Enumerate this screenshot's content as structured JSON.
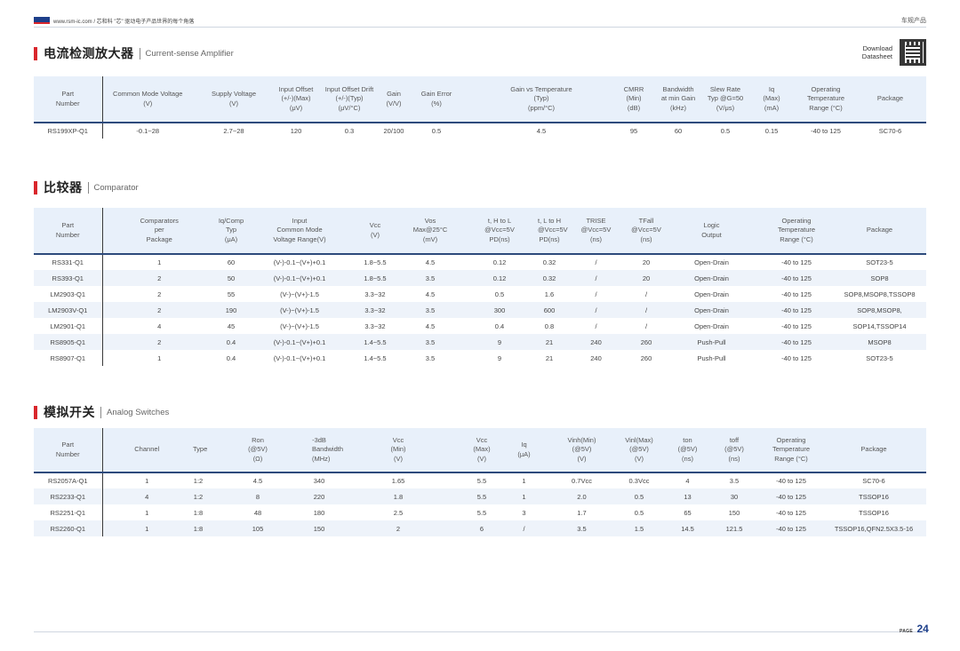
{
  "header": {
    "site": "www.rsm-ic.com / 芯和科 \"芯\" 驱动电子产品世界的每个角落",
    "section_tag": "车规产品"
  },
  "download": {
    "line1": "Download",
    "line2": "Datasheet"
  },
  "amp": {
    "title_cn": "电流检测放大器",
    "title_en": "Current-sense Amplifier",
    "headers": [
      "Part\nNumber",
      "Common Mode Voltage\n(V)",
      "Supply Voltage\n(V)",
      "Input Offset\n(+/-)(Max)\n(μV)",
      "Input Offset Drift\n(+/-)(Typ)\n(μV/°C)",
      "Gain\n(V/V)",
      "Gain Error\n(%)",
      "Gain vs Temperature\n(Typ)\n(ppm/°C)",
      "CMRR\n(Min)\n(dB)",
      "Bandwidth\nat min Gain\n(kHz)",
      "Slew Rate\nTyp @G=50\n(V/μs)",
      "Iq\n(Max)\n(mA)",
      "Operating\nTemperature\nRange (°C)",
      "Package"
    ],
    "rows": [
      [
        "RS199XP-Q1",
        "-0.1~28",
        "2.7~28",
        "120",
        "0.3",
        "20/100",
        "0.5",
        "4.5",
        "95",
        "60",
        "0.5",
        "0.15",
        "-40 to 125",
        "SC70-6"
      ]
    ]
  },
  "comp": {
    "title_cn": "比较器",
    "title_en": "Comparator",
    "headers": [
      "Part\nNumber",
      "Comparators\nper\nPackage",
      "Iq/Comp\nTyp\n(μA)",
      "Input\nCommon Mode\nVoltage Range(V)",
      "Vcc\n(V)",
      "Vos\nMax@25°C\n(mV)",
      "t, H to L\n@Vcc=5V\nPD(ns)",
      "t, L to H\n@Vcc=5V\nPD(ns)",
      "TRISE\n@Vcc=5V\n(ns)",
      "TFall\n@Vcc=5V\n(ns)",
      "Logic\nOutput",
      "Operating\nTemperature\nRange (°C)",
      "Package"
    ],
    "rows": [
      [
        "RS331-Q1",
        "1",
        "60",
        "(V-)-0.1~(V+)+0.1",
        "1.8~5.5",
        "4.5",
        "0.12",
        "0.32",
        "/",
        "20",
        "Open-Drain",
        "-40 to 125",
        "SOT23-5"
      ],
      [
        "RS393-Q1",
        "2",
        "50",
        "(V-)-0.1~(V+)+0.1",
        "1.8~5.5",
        "3.5",
        "0.12",
        "0.32",
        "/",
        "20",
        "Open-Drain",
        "-40 to 125",
        "SOP8"
      ],
      [
        "LM2903-Q1",
        "2",
        "55",
        "(V-)~(V+)-1.5",
        "3.3~32",
        "4.5",
        "0.5",
        "1.6",
        "/",
        "/",
        "Open-Drain",
        "-40 to 125",
        "SOP8,MSOP8,TSSOP8"
      ],
      [
        "LM2903V-Q1",
        "2",
        "190",
        "(V-)~(V+)-1.5",
        "3.3~32",
        "3.5",
        "300",
        "600",
        "/",
        "/",
        "Open-Drain",
        "-40 to 125",
        "SOP8,MSOP8,"
      ],
      [
        "LM2901-Q1",
        "4",
        "45",
        "(V-)~(V+)-1.5",
        "3.3~32",
        "4.5",
        "0.4",
        "0.8",
        "/",
        "/",
        "Open-Drain",
        "-40 to 125",
        "SOP14,TSSOP14"
      ],
      [
        "RS8905-Q1",
        "2",
        "0.4",
        "(V-)-0.1~(V+)+0.1",
        "1.4~5.5",
        "3.5",
        "9",
        "21",
        "240",
        "260",
        "Push-Pull",
        "-40 to 125",
        "MSOP8"
      ],
      [
        "RS8907-Q1",
        "1",
        "0.4",
        "(V-)-0.1~(V+)+0.1",
        "1.4~5.5",
        "3.5",
        "9",
        "21",
        "240",
        "260",
        "Push-Pull",
        "-40 to 125",
        "SOT23-5"
      ]
    ]
  },
  "sw": {
    "title_cn": "模拟开关",
    "title_en": "Analog Switches",
    "headers": [
      "Part\nNumber",
      "Channel",
      "Type",
      "Ron\n(@5V)\n(Ω)",
      "-3dB\nBandwidth\n(MHz)",
      "Vcc\n(Min)\n(V)",
      "Vcc\n(Max)\n(V)",
      "Iq\n(μA)",
      "Vinh(Min)\n(@5V)\n(V)",
      "Vinl(Max)\n(@5V)\n(V)",
      "ton\n(@5V)\n(ns)",
      "toff\n(@5V)\n(ns)",
      "Operating\nTemperature\nRange (°C)",
      "Package"
    ],
    "rows": [
      [
        "RS2057A-Q1",
        "1",
        "1:2",
        "4.5",
        "340",
        "1.65",
        "5.5",
        "1",
        "0.7Vcc",
        "0.3Vcc",
        "4",
        "3.5",
        "-40 to 125",
        "SC70-6"
      ],
      [
        "RS2233-Q1",
        "4",
        "1:2",
        "8",
        "220",
        "1.8",
        "5.5",
        "1",
        "2.0",
        "0.5",
        "13",
        "30",
        "-40 to 125",
        "TSSOP16"
      ],
      [
        "RS2251-Q1",
        "1",
        "1:8",
        "48",
        "180",
        "2.5",
        "5.5",
        "3",
        "1.7",
        "0.5",
        "65",
        "150",
        "-40 to 125",
        "TSSOP16"
      ],
      [
        "RS2260-Q1",
        "1",
        "1:8",
        "105",
        "150",
        "2",
        "6",
        "/",
        "3.5",
        "1.5",
        "14.5",
        "121.5",
        "-40 to 125",
        "TSSOP16,QFN2.5X3.5-16"
      ]
    ]
  },
  "footer": {
    "page_label": "PAGE",
    "page_num": "24"
  }
}
